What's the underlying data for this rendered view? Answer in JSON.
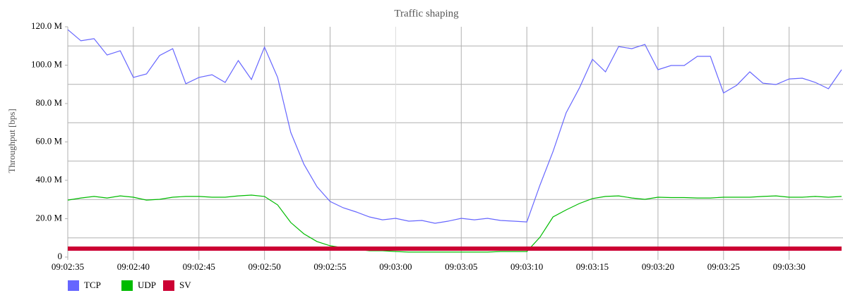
{
  "chart_data": {
    "type": "line",
    "title": "Traffic shaping",
    "y_label": "Throughput [bps]",
    "x": [
      "09:02:35",
      "09:02:36",
      "09:02:37",
      "09:02:38",
      "09:02:39",
      "09:02:40",
      "09:02:41",
      "09:02:42",
      "09:02:43",
      "09:02:44",
      "09:02:45",
      "09:02:46",
      "09:02:47",
      "09:02:48",
      "09:02:49",
      "09:02:50",
      "09:02:51",
      "09:02:52",
      "09:02:53",
      "09:02:54",
      "09:02:55",
      "09:02:56",
      "09:02:57",
      "09:02:58",
      "09:02:59",
      "09:03:00",
      "09:03:01",
      "09:03:02",
      "09:03:03",
      "09:03:04",
      "09:03:05",
      "09:03:06",
      "09:03:07",
      "09:03:08",
      "09:03:09",
      "09:03:10",
      "09:03:11",
      "09:03:12",
      "09:03:13",
      "09:03:14",
      "09:03:15",
      "09:03:16",
      "09:03:17",
      "09:03:18",
      "09:03:19",
      "09:03:20",
      "09:03:21",
      "09:03:22",
      "09:03:23",
      "09:03:24",
      "09:03:25",
      "09:03:26",
      "09:03:27",
      "09:03:28",
      "09:03:29",
      "09:03:30",
      "09:03:31",
      "09:03:32",
      "09:03:33",
      "09:03:34"
    ],
    "series": [
      {
        "name": "TCP",
        "color": "#6666ff",
        "width": 1.2,
        "values": [
          118.5,
          112.7,
          113.8,
          105.3,
          107.5,
          93.6,
          95.4,
          105,
          108.6,
          90.3,
          93.6,
          95,
          91,
          102.4,
          92.5,
          109.4,
          93.6,
          65,
          48.4,
          36.7,
          29,
          25.7,
          23.5,
          20.9,
          19.4,
          20.2,
          18.7,
          19.1,
          17.6,
          18.7,
          20.2,
          19.4,
          20.2,
          19.1,
          18.7,
          18.3,
          37.4,
          55,
          75.2,
          88,
          103.1,
          96.5,
          109.7,
          108.6,
          110.8,
          97.6,
          99.8,
          99.8,
          104.6,
          104.6,
          85.5,
          89.5,
          96.5,
          90.6,
          89.9,
          92.8,
          93.2,
          91,
          87.7,
          97.6
        ]
      },
      {
        "name": "UDP",
        "color": "#00bb00",
        "width": 1.2,
        "values": [
          29.7,
          30.8,
          31.6,
          30.8,
          31.9,
          31.2,
          29.7,
          30.1,
          31.2,
          31.6,
          31.6,
          31.2,
          31.2,
          31.9,
          32.3,
          31.6,
          27.2,
          18,
          12.1,
          8.1,
          5.9,
          4.8,
          4,
          3.3,
          3.3,
          2.9,
          2.6,
          2.6,
          2.6,
          2.6,
          2.6,
          2.6,
          2.6,
          2.9,
          2.9,
          2.9,
          10.3,
          20.9,
          24.6,
          27.9,
          30.5,
          31.6,
          31.9,
          30.8,
          30.1,
          31.2,
          31,
          31,
          30.8,
          30.8,
          31.2,
          31.2,
          31.2,
          31.6,
          31.9,
          31.2,
          31.2,
          31.6,
          31.2,
          31.6
        ]
      },
      {
        "name": "SV",
        "color": "#cc0033",
        "width": 6,
        "values": [
          4.4,
          4.4,
          4.4,
          4.4,
          4.4,
          4.4,
          4.4,
          4.4,
          4.4,
          4.4,
          4.4,
          4.4,
          4.4,
          4.4,
          4.4,
          4.4,
          4.4,
          4.4,
          4.4,
          4.4,
          4.4,
          4.4,
          4.4,
          4.4,
          4.4,
          4.4,
          4.4,
          4.4,
          4.4,
          4.4,
          4.4,
          4.4,
          4.4,
          4.4,
          4.4,
          4.4,
          4.4,
          4.4,
          4.4,
          4.4,
          4.4,
          4.4,
          4.4,
          4.4,
          4.4,
          4.4,
          4.4,
          4.4,
          4.4,
          4.4,
          4.4,
          4.4,
          4.4,
          4.4,
          4.4,
          4.4,
          4.4,
          4.4,
          4.4,
          4.4
        ]
      }
    ],
    "xlim": [
      "09:02:35",
      "09:03:34"
    ],
    "xticks": [
      "09:02:35",
      "09:02:40",
      "09:02:45",
      "09:02:50",
      "09:02:55",
      "09:03:00",
      "09:03:05",
      "09:03:10",
      "09:03:15",
      "09:03:20",
      "09:03:25",
      "09:03:30"
    ],
    "ylim": [
      0,
      120
    ],
    "yticks": [
      0,
      {
        "value": 20,
        "label": "20.0 M"
      },
      {
        "value": 40,
        "label": "40.0 M"
      },
      {
        "value": 60,
        "label": "60.0 M"
      },
      {
        "value": 80,
        "label": "80.0 M"
      },
      {
        "value": 100,
        "label": "100.0 M"
      },
      {
        "value": 120,
        "label": "120.0 M"
      }
    ],
    "ygrid": [
      10,
      30,
      50,
      70,
      90,
      110
    ],
    "grid": true,
    "legend": "bottom-left"
  }
}
